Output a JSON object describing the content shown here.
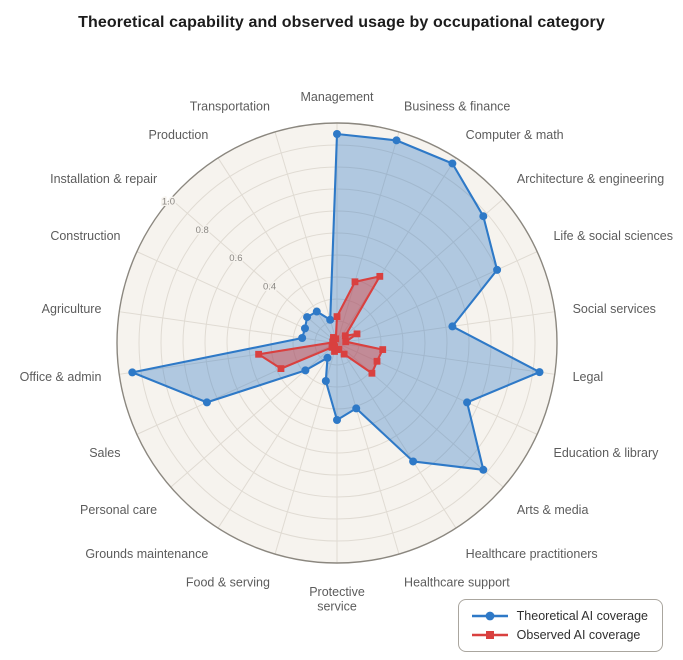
{
  "title": "Theoretical capability and observed usage by occupational category",
  "chart_data": {
    "type": "radar",
    "title": "Theoretical capability and observed usage by occupational category",
    "categories": [
      "Management",
      "Business & finance",
      "Computer & math",
      "Architecture & engineering",
      "Life & social sciences",
      "Social services",
      "Legal",
      "Education & library",
      "Arts & media",
      "Healthcare practitioners",
      "Healthcare support",
      "Protective\nservice",
      "Food & serving",
      "Grounds maintenance",
      "Personal care",
      "Sales",
      "Office & admin",
      "Agriculture",
      "Construction",
      "Installation & repair",
      "Production",
      "Transportation"
    ],
    "series": [
      {
        "name": "Theoretical AI coverage",
        "marker": "circle",
        "color": "#2e79c7",
        "fill_opacity": 0.35,
        "values": [
          0.95,
          0.96,
          0.97,
          0.88,
          0.8,
          0.53,
          0.93,
          0.65,
          0.88,
          0.64,
          0.31,
          0.35,
          0.18,
          0.08,
          0.19,
          0.65,
          0.94,
          0.16,
          0.16,
          0.18,
          0.17,
          0.11
        ]
      },
      {
        "name": "Observed AI coverage",
        "marker": "square",
        "color": "#d9403f",
        "fill_opacity": 0.45,
        "values": [
          0.12,
          0.29,
          0.36,
          0.05,
          0.1,
          0.04,
          0.21,
          0.2,
          0.21,
          0.06,
          0.03,
          0.03,
          0.04,
          0.02,
          0.03,
          0.28,
          0.36,
          0.02,
          0.02,
          0.02,
          0.03,
          0.02
        ]
      }
    ],
    "radial_ticks": [
      0.4,
      0.6,
      0.8,
      1.0
    ],
    "radial_tick_labels": [
      "0.4",
      "0.6",
      "0.8",
      "1.0"
    ],
    "r_max": 1.0,
    "ring_step": 0.1,
    "grid": true,
    "direction": "clockwise",
    "start_angle_deg": 90,
    "legend_position": "bottom-right",
    "colors": {
      "disc_background": "#f6f3ee",
      "grid_line": "#e0dbd3",
      "outer_ring": "#8b877f",
      "category_label": "#5c5c5c",
      "tick_label": "#8a8783"
    }
  }
}
